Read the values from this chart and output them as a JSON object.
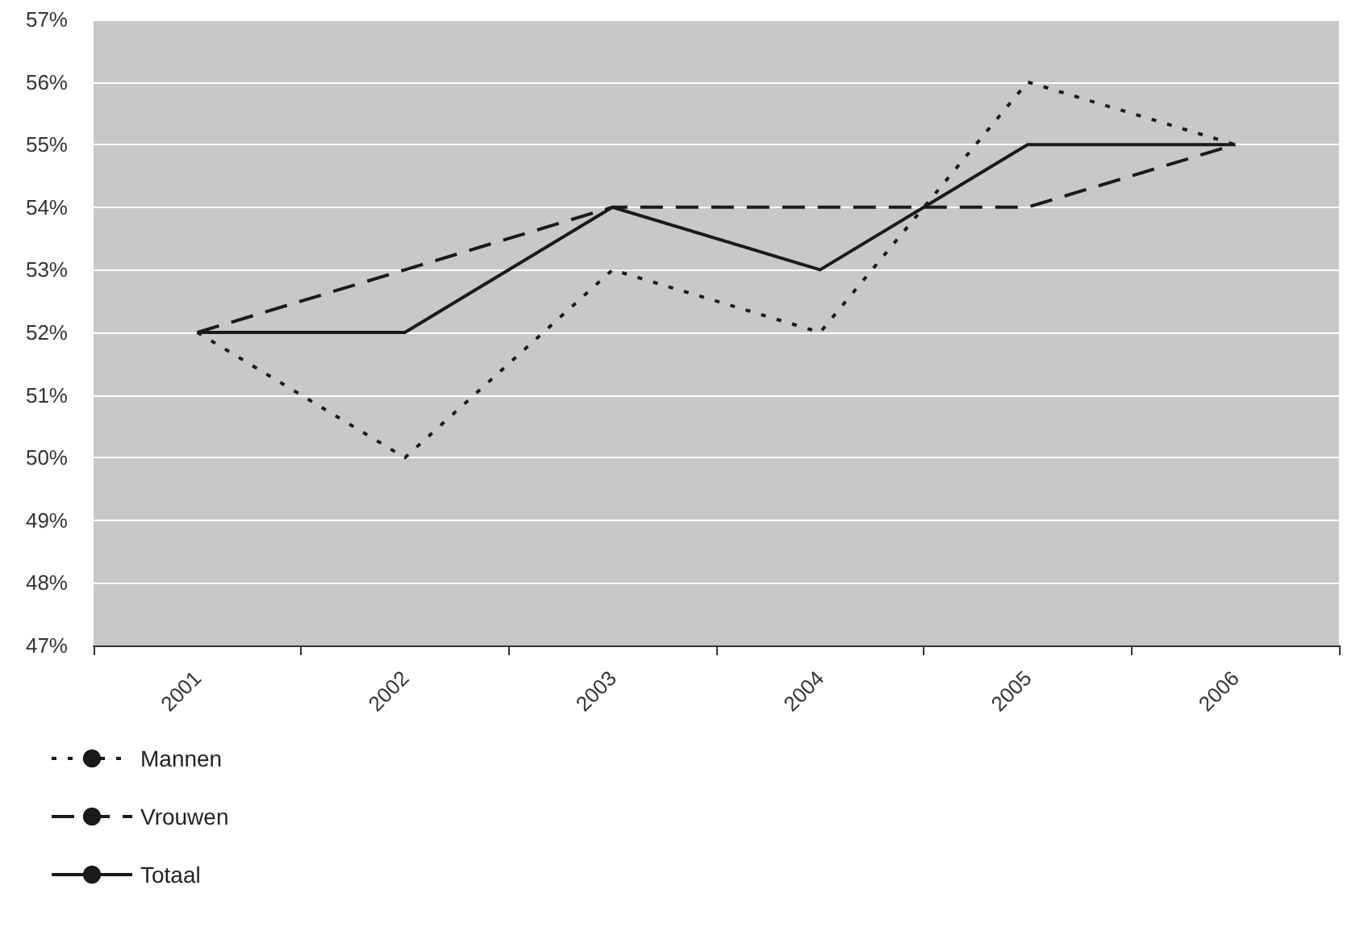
{
  "chart_data": {
    "type": "line",
    "categories": [
      "2001",
      "2002",
      "2003",
      "2004",
      "2005",
      "2006"
    ],
    "series": [
      {
        "name": "Mannen",
        "color": "#1a1a1a",
        "line_style": "dotted",
        "values": [
          52,
          50,
          53,
          52,
          56,
          55
        ]
      },
      {
        "name": "Vrouwen",
        "color": "#1a1a1a",
        "line_style": "dashed",
        "values": [
          52,
          53,
          54,
          54,
          54,
          55
        ]
      },
      {
        "name": "Totaal",
        "color": "#1a1a1a",
        "line_style": "solid",
        "values": [
          52,
          52,
          54,
          53,
          55,
          55
        ]
      }
    ],
    "ylim": [
      47,
      57
    ],
    "yticks": [
      {
        "value": 47,
        "label": "47%"
      },
      {
        "value": 48,
        "label": "48%"
      },
      {
        "value": 49,
        "label": "49%"
      },
      {
        "value": 50,
        "label": "50%"
      },
      {
        "value": 51,
        "label": "51%"
      },
      {
        "value": 52,
        "label": "52%"
      },
      {
        "value": 53,
        "label": "53%"
      },
      {
        "value": 54,
        "label": "54%"
      },
      {
        "value": 55,
        "label": "55%"
      },
      {
        "value": 56,
        "label": "56%"
      },
      {
        "value": 57,
        "label": "57%"
      }
    ],
    "grid": "y",
    "legend": "bottom left",
    "marker": "none"
  }
}
